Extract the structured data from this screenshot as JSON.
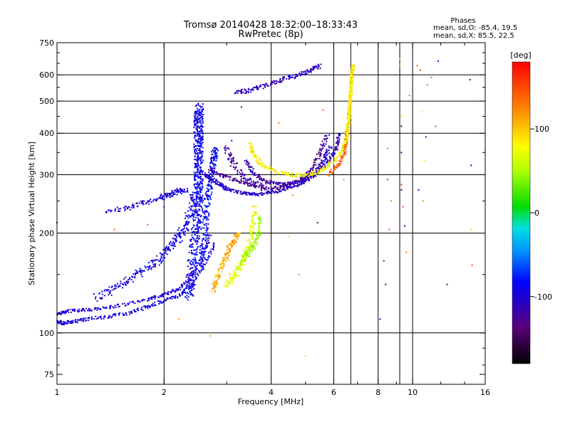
{
  "chart_data": {
    "type": "scatter",
    "title": "Tromsø 20140428 18:32:00–18:33:43",
    "subtitle": "RwPretec (8p)",
    "xlabel": "Frequency [MHz]",
    "ylabel": "Stationary phase Virtual Height [km]",
    "x_scale": "log",
    "y_scale": "log",
    "xlim": [
      1,
      16
    ],
    "ylim": [
      70,
      750
    ],
    "x_ticks": [
      1,
      2,
      4,
      6,
      8,
      10,
      16
    ],
    "y_ticks": [
      75,
      100,
      200,
      300,
      400,
      500,
      600,
      750
    ],
    "x_gridlines": [
      2,
      4,
      6,
      6.7,
      8,
      9.2,
      10
    ],
    "y_gridlines": [
      100,
      200,
      300,
      400,
      500,
      600
    ],
    "grid": true,
    "legend": {
      "title": "Phases",
      "lines": [
        "mean, sd,O: -85.4, 19.5",
        "mean, sd,X: 85.5, 22.5"
      ],
      "position": "top-right"
    },
    "colorbar": {
      "label": "[deg]",
      "ticks": [
        100,
        0,
        -100
      ],
      "range": [
        -180,
        180
      ],
      "position": "right"
    },
    "traces": [
      {
        "name": "",
        "phase": -95,
        "spread": [
          0.01,
          0.012
        ],
        "n": 4,
        "points": [
          [
            1.0,
            108
          ],
          [
            1.04,
            107
          ],
          [
            1.1,
            108
          ],
          [
            1.2,
            110
          ],
          [
            1.4,
            112
          ],
          [
            1.6,
            115
          ],
          [
            1.8,
            120
          ],
          [
            2.0,
            125
          ],
          [
            2.2,
            130
          ],
          [
            2.4,
            140
          ],
          [
            2.6,
            160
          ],
          [
            2.8,
            190
          ]
        ]
      },
      {
        "name": "",
        "phase": -100,
        "spread": [
          0.012,
          0.01
        ],
        "n": 4,
        "points": [
          [
            1.0,
            114
          ],
          [
            1.05,
            116
          ],
          [
            1.15,
            117
          ],
          [
            1.3,
            118
          ],
          [
            1.5,
            121
          ],
          [
            1.8,
            126
          ],
          [
            2.0,
            130
          ],
          [
            2.2,
            136
          ],
          [
            2.4,
            148
          ],
          [
            2.6,
            175
          ],
          [
            2.7,
            200
          ]
        ]
      },
      {
        "name": "",
        "phase": -95,
        "spread": [
          0.025,
          0.03
        ],
        "n": 6,
        "points": [
          [
            1.3,
            128
          ],
          [
            1.5,
            140
          ],
          [
            1.7,
            150
          ],
          [
            1.9,
            163
          ],
          [
            2.05,
            180
          ],
          [
            2.2,
            195
          ],
          [
            2.3,
            210
          ],
          [
            2.4,
            240
          ],
          [
            2.45,
            270
          ]
        ]
      },
      {
        "name": "",
        "phase": -100,
        "spread": [
          0.03,
          0.015
        ],
        "n": 4,
        "points": [
          [
            1.4,
            232
          ],
          [
            1.6,
            240
          ],
          [
            1.8,
            248
          ],
          [
            2.0,
            258
          ],
          [
            2.1,
            262
          ],
          [
            2.2,
            268
          ],
          [
            2.3,
            270
          ]
        ]
      },
      {
        "name": "",
        "phase": -90,
        "spread": [
          0.03,
          0.04
        ],
        "n": 12,
        "points": [
          [
            2.35,
            130
          ],
          [
            2.4,
            160
          ],
          [
            2.45,
            200
          ],
          [
            2.5,
            240
          ],
          [
            2.5,
            280
          ],
          [
            2.5,
            320
          ],
          [
            2.5,
            360
          ],
          [
            2.5,
            400
          ],
          [
            2.5,
            440
          ],
          [
            2.52,
            480
          ]
        ]
      },
      {
        "name": "",
        "phase": -85,
        "spread": [
          0.02,
          0.02
        ],
        "n": 8,
        "points": [
          [
            2.55,
            160
          ],
          [
            2.6,
            200
          ],
          [
            2.65,
            250
          ],
          [
            2.7,
            290
          ],
          [
            2.75,
            330
          ],
          [
            2.8,
            360
          ]
        ]
      },
      {
        "name": "",
        "phase": -105,
        "spread": [
          0.015,
          0.01
        ],
        "n": 6,
        "points": [
          [
            2.6,
            300
          ],
          [
            2.8,
            285
          ],
          [
            3.0,
            272
          ],
          [
            3.3,
            264
          ],
          [
            3.7,
            262
          ],
          [
            4.2,
            268
          ],
          [
            4.8,
            280
          ],
          [
            5.3,
            300
          ],
          [
            5.6,
            330
          ],
          [
            5.9,
            370
          ]
        ]
      },
      {
        "name": "",
        "phase": -125,
        "spread": [
          0.015,
          0.012
        ],
        "n": 5,
        "points": [
          [
            2.7,
            310
          ],
          [
            3.0,
            295
          ],
          [
            3.4,
            282
          ],
          [
            3.8,
            272
          ],
          [
            4.3,
            275
          ],
          [
            4.8,
            288
          ],
          [
            5.2,
            310
          ],
          [
            5.5,
            350
          ],
          [
            5.8,
            400
          ]
        ]
      },
      {
        "name": "",
        "phase": -115,
        "spread": [
          0.01,
          0.012
        ],
        "n": 5,
        "points": [
          [
            3.4,
            330
          ],
          [
            3.6,
            300
          ],
          [
            3.9,
            285
          ],
          [
            4.3,
            280
          ],
          [
            4.8,
            286
          ],
          [
            5.3,
            300
          ],
          [
            5.8,
            330
          ],
          [
            6.1,
            360
          ],
          [
            6.2,
            400
          ]
        ]
      },
      {
        "name": "",
        "phase": -120,
        "spread": [
          0.02,
          0.02
        ],
        "n": 4,
        "points": [
          [
            3.0,
            360
          ],
          [
            3.1,
            330
          ],
          [
            3.3,
            300
          ],
          [
            3.5,
            285
          ],
          [
            3.8,
            278
          ]
        ]
      },
      {
        "name": "",
        "phase": 80,
        "spread": [
          0.012,
          0.012
        ],
        "n": 5,
        "points": [
          [
            3.5,
            370
          ],
          [
            3.6,
            340
          ],
          [
            3.8,
            320
          ],
          [
            4.2,
            305
          ],
          [
            4.7,
            298
          ],
          [
            5.2,
            300
          ],
          [
            5.7,
            315
          ],
          [
            6.2,
            340
          ],
          [
            6.5,
            380
          ],
          [
            6.6,
            430
          ],
          [
            6.7,
            520
          ],
          [
            6.75,
            640
          ]
        ]
      },
      {
        "name": "",
        "phase": 140,
        "spread": [
          0.01,
          0.015
        ],
        "n": 4,
        "points": [
          [
            5.8,
            300
          ],
          [
            6.2,
            320
          ],
          [
            6.4,
            345
          ],
          [
            6.5,
            380
          ],
          [
            6.55,
            420
          ]
        ]
      },
      {
        "name": "",
        "phase": 85,
        "spread": [
          0.01,
          0.01
        ],
        "n": 6,
        "points": [
          [
            6.5,
            380
          ],
          [
            6.6,
            430
          ],
          [
            6.65,
            480
          ],
          [
            6.7,
            540
          ],
          [
            6.75,
            600
          ],
          [
            6.8,
            650
          ]
        ]
      },
      {
        "name": "",
        "phase": -110,
        "spread": [
          0.015,
          0.015
        ],
        "n": 5,
        "points": [
          [
            3.2,
            530
          ],
          [
            3.5,
            540
          ],
          [
            3.9,
            560
          ],
          [
            4.3,
            580
          ],
          [
            4.8,
            600
          ],
          [
            5.2,
            620
          ],
          [
            5.5,
            640
          ]
        ]
      },
      {
        "name": "",
        "phase": 110,
        "spread": [
          0.015,
          0.025
        ],
        "n": 5,
        "points": [
          [
            2.75,
            135
          ],
          [
            2.85,
            150
          ],
          [
            2.95,
            165
          ],
          [
            3.05,
            180
          ],
          [
            3.15,
            190
          ],
          [
            3.25,
            200
          ]
        ]
      },
      {
        "name": "",
        "phase": 70,
        "spread": [
          0.015,
          0.03
        ],
        "n": 5,
        "points": [
          [
            3.0,
            140
          ],
          [
            3.15,
            150
          ],
          [
            3.3,
            160
          ],
          [
            3.4,
            175
          ],
          [
            3.5,
            190
          ],
          [
            3.55,
            210
          ],
          [
            3.6,
            240
          ]
        ]
      },
      {
        "name": "",
        "phase": 45,
        "spread": [
          0.01,
          0.03
        ],
        "n": 4,
        "points": [
          [
            3.3,
            165
          ],
          [
            3.45,
            175
          ],
          [
            3.6,
            185
          ],
          [
            3.7,
            200
          ],
          [
            3.72,
            230
          ]
        ]
      }
    ],
    "scatter_points": [
      {
        "x": 1.0,
        "y": 215,
        "phase": -130
      },
      {
        "x": 1.45,
        "y": 205,
        "phase": 140
      },
      {
        "x": 1.8,
        "y": 212,
        "phase": 150
      },
      {
        "x": 2.0,
        "y": 240,
        "phase": -110
      },
      {
        "x": 2.2,
        "y": 110,
        "phase": 120
      },
      {
        "x": 2.7,
        "y": 98,
        "phase": 30
      },
      {
        "x": 3.1,
        "y": 380,
        "phase": -90
      },
      {
        "x": 3.3,
        "y": 480,
        "phase": -110
      },
      {
        "x": 4.2,
        "y": 430,
        "phase": 130
      },
      {
        "x": 4.5,
        "y": 195,
        "phase": 90
      },
      {
        "x": 4.6,
        "y": 260,
        "phase": 130
      },
      {
        "x": 4.8,
        "y": 150,
        "phase": 120
      },
      {
        "x": 5.0,
        "y": 85,
        "phase": 100
      },
      {
        "x": 5.2,
        "y": 330,
        "phase": 80
      },
      {
        "x": 5.4,
        "y": 215,
        "phase": -130
      },
      {
        "x": 5.6,
        "y": 470,
        "phase": 140
      },
      {
        "x": 6.4,
        "y": 290,
        "phase": 30
      },
      {
        "x": 8.1,
        "y": 110,
        "phase": -100
      },
      {
        "x": 8.3,
        "y": 165,
        "phase": -140
      },
      {
        "x": 8.4,
        "y": 140,
        "phase": -120
      },
      {
        "x": 8.5,
        "y": 290,
        "phase": 170
      },
      {
        "x": 8.5,
        "y": 360,
        "phase": 130
      },
      {
        "x": 8.6,
        "y": 205,
        "phase": 150
      },
      {
        "x": 8.7,
        "y": 250,
        "phase": 130
      },
      {
        "x": 9.2,
        "y": 670,
        "phase": 60
      },
      {
        "x": 9.2,
        "y": 640,
        "phase": 40
      },
      {
        "x": 9.3,
        "y": 450,
        "phase": 90
      },
      {
        "x": 9.3,
        "y": 420,
        "phase": -150
      },
      {
        "x": 9.3,
        "y": 350,
        "phase": -110
      },
      {
        "x": 9.3,
        "y": 280,
        "phase": 160
      },
      {
        "x": 9.3,
        "y": 270,
        "phase": -150
      },
      {
        "x": 9.4,
        "y": 240,
        "phase": 150
      },
      {
        "x": 9.5,
        "y": 210,
        "phase": -110
      },
      {
        "x": 9.6,
        "y": 175,
        "phase": 130
      },
      {
        "x": 9.8,
        "y": 520,
        "phase": 20
      },
      {
        "x": 10.3,
        "y": 640,
        "phase": 140
      },
      {
        "x": 10.5,
        "y": 620,
        "phase": 170
      },
      {
        "x": 10.6,
        "y": 465,
        "phase": 70
      },
      {
        "x": 10.8,
        "y": 330,
        "phase": 80
      },
      {
        "x": 10.9,
        "y": 390,
        "phase": -120
      },
      {
        "x": 10.4,
        "y": 270,
        "phase": -90
      },
      {
        "x": 10.7,
        "y": 250,
        "phase": 120
      },
      {
        "x": 11.0,
        "y": 560,
        "phase": 20
      },
      {
        "x": 11.3,
        "y": 590,
        "phase": 10
      },
      {
        "x": 11.6,
        "y": 420,
        "phase": 150
      },
      {
        "x": 11.8,
        "y": 660,
        "phase": -90
      },
      {
        "x": 12.5,
        "y": 140,
        "phase": -140
      },
      {
        "x": 14.5,
        "y": 580,
        "phase": -120
      },
      {
        "x": 14.6,
        "y": 320,
        "phase": -100
      },
      {
        "x": 14.6,
        "y": 205,
        "phase": 50
      },
      {
        "x": 14.7,
        "y": 160,
        "phase": 150
      }
    ]
  }
}
